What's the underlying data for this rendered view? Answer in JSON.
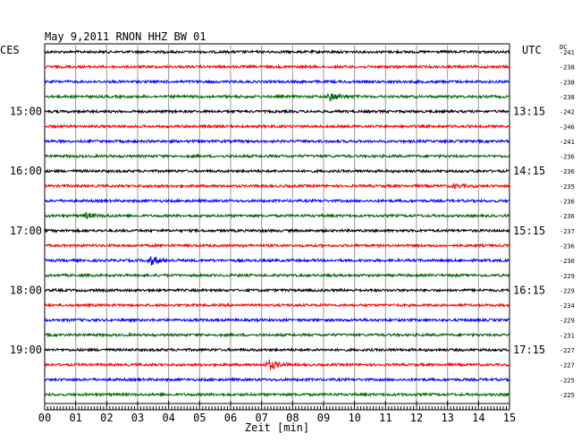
{
  "header": {
    "title": "May 9,2011   RNON HHZ BW 01",
    "left_tz": "CES",
    "right_tz": "UTC",
    "dc_label": "DC"
  },
  "chart_data": {
    "type": "line",
    "title": "May 9,2011   RNON HHZ BW 01",
    "xlabel": "Zeit [min]",
    "ylabel": "",
    "x_ticks": [
      "00",
      "01",
      "02",
      "03",
      "04",
      "05",
      "06",
      "07",
      "08",
      "09",
      "10",
      "11",
      "12",
      "13",
      "14",
      "15"
    ],
    "xlim": [
      0,
      15
    ],
    "grid": true,
    "trace_colors": [
      "#000000",
      "#ff0000",
      "#0000ff",
      "#006400"
    ],
    "left_hour_labels": [
      {
        "trace_index": 4,
        "label": "15:00"
      },
      {
        "trace_index": 8,
        "label": "16:00"
      },
      {
        "trace_index": 12,
        "label": "17:00"
      },
      {
        "trace_index": 16,
        "label": "18:00"
      },
      {
        "trace_index": 20,
        "label": "19:00"
      }
    ],
    "right_hour_labels": [
      {
        "trace_index": 4,
        "label": "13:15"
      },
      {
        "trace_index": 8,
        "label": "14:15"
      },
      {
        "trace_index": 12,
        "label": "15:15"
      },
      {
        "trace_index": 16,
        "label": "16:15"
      },
      {
        "trace_index": 20,
        "label": "17:15"
      }
    ],
    "dc_offsets": [
      "-241",
      "-238",
      "-238",
      "-238",
      "-242",
      "-246",
      "-241",
      "-236",
      "-236",
      "-235",
      "-236",
      "-236",
      "-237",
      "-236",
      "-230",
      "-229",
      "-229",
      "-234",
      "-229",
      "-231",
      "-227",
      "-227",
      "-225",
      "-225"
    ],
    "events": [
      {
        "trace_index": 3,
        "minute": 9.2,
        "amplitude": 4
      },
      {
        "trace_index": 9,
        "minute": 13.2,
        "amplitude": 2
      },
      {
        "trace_index": 11,
        "minute": 1.3,
        "amplitude": 3
      },
      {
        "trace_index": 14,
        "minute": 3.4,
        "amplitude": 5
      },
      {
        "trace_index": 21,
        "minute": 7.2,
        "amplitude": 6
      }
    ]
  }
}
